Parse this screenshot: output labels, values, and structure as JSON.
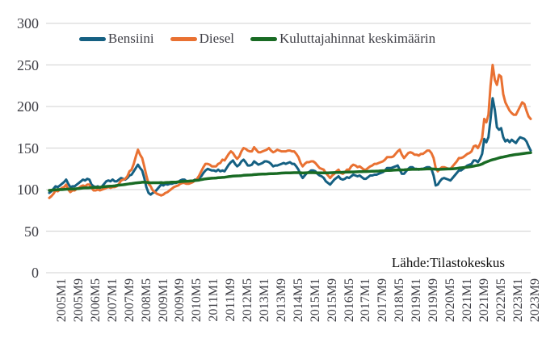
{
  "chart_data": {
    "type": "line",
    "title": "",
    "x_start": "2005M1",
    "x_end": "2024M1",
    "frequency": "monthly",
    "ylim": [
      0,
      300
    ],
    "y_ticks": [
      0,
      50,
      100,
      150,
      200,
      250,
      300
    ],
    "grid": "horizontal",
    "grid_color": "#D9D9D9",
    "axis_text_color": "#3f3f46",
    "legend_position": "top-center",
    "source_label": "Lähde:Tilastokeskus",
    "x_tick_labels": [
      "2005M1",
      "2005M9",
      "2006M5",
      "2007M1",
      "2007M9",
      "2008M5",
      "2009M1",
      "2009M9",
      "2010M5",
      "2011M1",
      "2011M9",
      "2012M5",
      "2013M1",
      "2013M9",
      "2014M5",
      "2015M1",
      "2015M9",
      "2016M5",
      "2017M1",
      "2017M9",
      "2018M5",
      "2019M1",
      "2019M9",
      "2020M5",
      "2021M1",
      "2021M9",
      "2022M5",
      "2023M1",
      "2023M9"
    ],
    "x_tick_month_step": 8,
    "series": [
      {
        "name": "Bensiini",
        "color": "#156082",
        "values": [
          96,
          98,
          101,
          104,
          103,
          105,
          107,
          109,
          112,
          107,
          103,
          104,
          104,
          106,
          108,
          110,
          112,
          111,
          113,
          112,
          106,
          104,
          103,
          104,
          102,
          104,
          107,
          110,
          111,
          110,
          112,
          110,
          110,
          112,
          114,
          113,
          112,
          114,
          117,
          118,
          122,
          126,
          130,
          126,
          123,
          114,
          103,
          96,
          94,
          96,
          97,
          100,
          103,
          106,
          105,
          107,
          106,
          107,
          107,
          108,
          108,
          109,
          111,
          112,
          112,
          110,
          110,
          110,
          110,
          112,
          112,
          114,
          116,
          120,
          123,
          125,
          124,
          123,
          123,
          122,
          124,
          122,
          123,
          122,
          126,
          130,
          133,
          135,
          131,
          128,
          130,
          134,
          136,
          133,
          129,
          129,
          130,
          134,
          132,
          130,
          131,
          132,
          134,
          134,
          133,
          131,
          128,
          129,
          129,
          130,
          131,
          132,
          131,
          132,
          133,
          131,
          131,
          128,
          124,
          118,
          114,
          117,
          120,
          121,
          123,
          123,
          122,
          119,
          117,
          116,
          114,
          110,
          108,
          106,
          109,
          112,
          114,
          116,
          113,
          112,
          113,
          115,
          114,
          116,
          118,
          117,
          116,
          117,
          115,
          113,
          113,
          115,
          117,
          117,
          118,
          118,
          119,
          120,
          121,
          123,
          126,
          126,
          126,
          127,
          128,
          129,
          124,
          119,
          119,
          122,
          125,
          127,
          127,
          125,
          125,
          124,
          125,
          125,
          126,
          127,
          127,
          125,
          117,
          105,
          106,
          110,
          113,
          114,
          113,
          112,
          111,
          114,
          117,
          120,
          123,
          123,
          125,
          127,
          129,
          130,
          131,
          135,
          135,
          133,
          137,
          143,
          161,
          157,
          163,
          185,
          210,
          196,
          175,
          172,
          174,
          163,
          158,
          160,
          157,
          160,
          158,
          156,
          160,
          163,
          162,
          161,
          158,
          152,
          147
        ]
      },
      {
        "name": "Diesel",
        "color": "#E97132",
        "values": [
          90,
          92,
          95,
          99,
          98,
          100,
          102,
          103,
          106,
          100,
          97,
          99,
          99,
          101,
          102,
          104,
          105,
          104,
          106,
          106,
          102,
          99,
          99,
          100,
          99,
          100,
          101,
          102,
          103,
          102,
          103,
          103,
          104,
          107,
          111,
          112,
          113,
          116,
          122,
          124,
          131,
          140,
          148,
          142,
          138,
          128,
          117,
          107,
          104,
          99,
          97,
          95,
          94,
          93,
          94,
          96,
          97,
          99,
          101,
          103,
          104,
          105,
          107,
          108,
          108,
          107,
          107,
          108,
          109,
          111,
          113,
          117,
          122,
          127,
          131,
          131,
          130,
          128,
          128,
          128,
          131,
          132,
          136,
          135,
          139,
          143,
          146,
          144,
          140,
          137,
          140,
          146,
          150,
          149,
          147,
          146,
          146,
          151,
          148,
          145,
          145,
          146,
          147,
          148,
          150,
          147,
          145,
          146,
          148,
          147,
          146,
          146,
          146,
          147,
          147,
          146,
          146,
          143,
          139,
          132,
          128,
          131,
          133,
          133,
          134,
          134,
          132,
          129,
          126,
          125,
          124,
          120,
          117,
          114,
          117,
          119,
          122,
          124,
          120,
          119,
          121,
          124,
          124,
          128,
          130,
          129,
          127,
          128,
          126,
          124,
          124,
          126,
          128,
          129,
          131,
          131,
          132,
          133,
          134,
          136,
          139,
          139,
          139,
          140,
          143,
          146,
          148,
          142,
          138,
          141,
          144,
          145,
          144,
          142,
          142,
          141,
          143,
          143,
          145,
          147,
          147,
          144,
          138,
          126,
          122,
          125,
          127,
          127,
          126,
          125,
          125,
          128,
          131,
          134,
          138,
          138,
          139,
          141,
          143,
          144,
          146,
          152,
          153,
          150,
          155,
          162,
          185,
          181,
          190,
          225,
          250,
          232,
          226,
          238,
          236,
          215,
          205,
          200,
          195,
          192,
          190,
          190,
          195,
          200,
          205,
          203,
          195,
          188,
          185
        ]
      },
      {
        "name": "Kuluttajahinnat keskimäärin",
        "color": "#196B24",
        "values": [
          99.0,
          99.2,
          99.5,
          99.8,
          100.0,
          100.1,
          100.0,
          100.2,
          100.5,
          100.6,
          100.7,
          100.8,
          100.8,
          101.1,
          101.3,
          101.6,
          101.9,
          102.0,
          102.0,
          102.2,
          102.4,
          102.5,
          102.6,
          102.7,
          102.9,
          103.2,
          103.5,
          103.8,
          104.0,
          104.2,
          104.3,
          104.5,
          105.0,
          105.3,
          105.6,
          105.8,
          106.2,
          106.6,
          107.0,
          107.3,
          107.7,
          108.1,
          108.3,
          108.4,
          108.8,
          108.9,
          108.7,
          108.4,
          108.2,
          108.3,
          108.3,
          108.3,
          108.3,
          108.4,
          108.2,
          108.4,
          108.6,
          108.7,
          108.9,
          109.0,
          109.0,
          109.3,
          109.6,
          109.8,
          110.0,
          110.1,
          110.2,
          110.4,
          110.6,
          110.9,
          111.2,
          111.5,
          112.0,
          112.5,
          112.9,
          113.2,
          113.5,
          113.7,
          113.8,
          114.0,
          114.3,
          114.5,
          114.7,
          114.9,
          115.2,
          115.6,
          115.9,
          116.2,
          116.4,
          116.5,
          116.6,
          116.8,
          117.2,
          117.4,
          117.5,
          117.6,
          117.8,
          118.1,
          118.3,
          118.4,
          118.5,
          118.6,
          118.7,
          118.8,
          119.0,
          119.1,
          119.2,
          119.3,
          119.4,
          119.7,
          119.9,
          120.0,
          120.1,
          120.2,
          120.2,
          120.3,
          120.4,
          120.4,
          120.4,
          120.3,
          120.0,
          120.2,
          120.3,
          120.4,
          120.4,
          120.4,
          120.3,
          120.2,
          120.2,
          120.2,
          120.2,
          120.1,
          120.2,
          120.3,
          120.4,
          120.5,
          120.6,
          120.7,
          120.8,
          120.9,
          121.0,
          121.1,
          121.2,
          121.3,
          121.3,
          121.4,
          121.5,
          121.6,
          121.6,
          121.7,
          121.7,
          121.8,
          121.9,
          122.0,
          122.1,
          122.2,
          122.3,
          122.5,
          122.7,
          122.8,
          123.0,
          123.1,
          123.2,
          123.4,
          123.6,
          123.7,
          123.8,
          123.7,
          123.8,
          124.0,
          124.2,
          124.3,
          124.4,
          124.4,
          124.4,
          124.5,
          124.6,
          124.7,
          124.8,
          124.9,
          124.9,
          124.9,
          124.8,
          124.5,
          124.4,
          124.4,
          124.6,
          124.7,
          124.8,
          124.9,
          124.9,
          125.0,
          125.2,
          125.5,
          125.9,
          126.2,
          126.5,
          126.8,
          127.1,
          127.4,
          127.8,
          128.3,
          128.8,
          129.2,
          129.8,
          130.8,
          132.2,
          133.2,
          134.2,
          135.2,
          136.0,
          136.6,
          137.4,
          138.2,
          138.8,
          139.2,
          139.8,
          140.4,
          141.0,
          141.4,
          141.8,
          142.2,
          142.5,
          142.8,
          143.2,
          143.6,
          143.9,
          144.2,
          144.5
        ]
      }
    ]
  }
}
